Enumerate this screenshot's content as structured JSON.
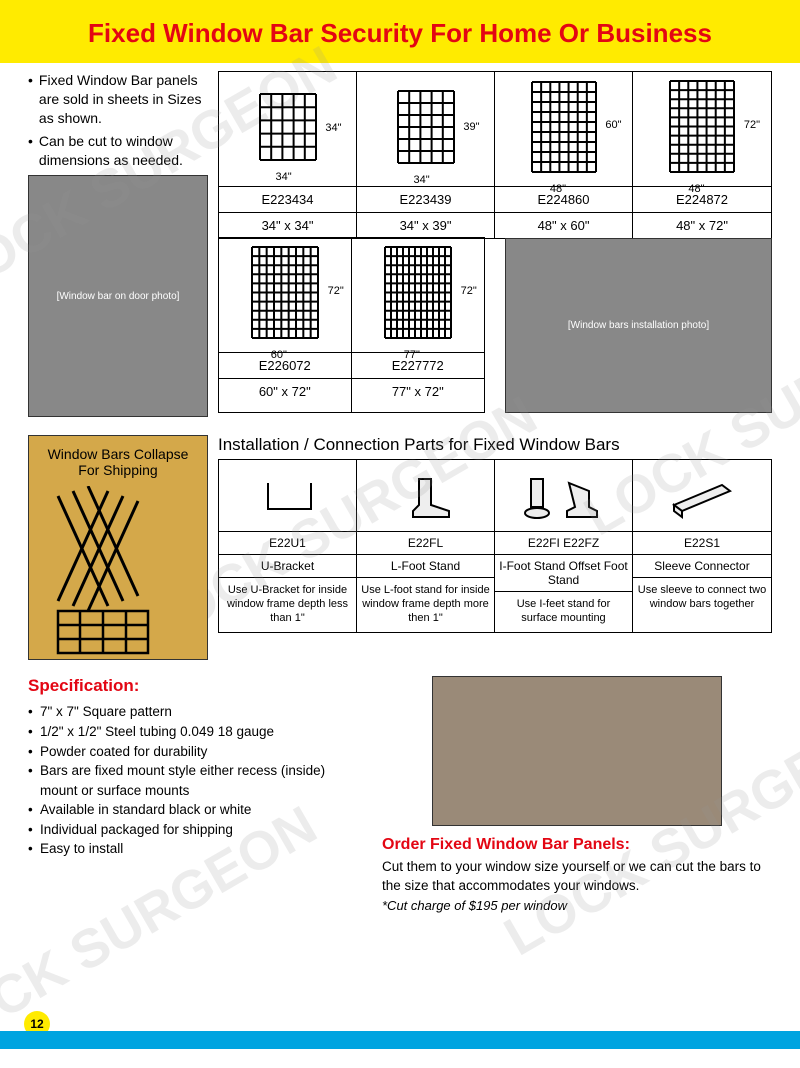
{
  "header": {
    "title": "Fixed Window Bar Security For Home Or Business"
  },
  "intro": {
    "bullets": [
      "Fixed Window Bar panels are sold in sheets in Sizes as shown.",
      "Can be cut to window dimensions as needed."
    ]
  },
  "sizes_row1": [
    {
      "code": "E223434",
      "dim": "34\" x 34\"",
      "w": "34\"",
      "h": "34\"",
      "cols": 5,
      "rows": 5
    },
    {
      "code": "E223439",
      "dim": "34\" x 39\"",
      "w": "34\"",
      "h": "39\"",
      "cols": 5,
      "rows": 6
    },
    {
      "code": "E224860",
      "dim": "48\" x 60\"",
      "w": "48\"",
      "h": "60\"",
      "cols": 7,
      "rows": 9
    },
    {
      "code": "E224872",
      "dim": "48\" x 72\"",
      "w": "48\"",
      "h": "72\"",
      "cols": 7,
      "rows": 10
    }
  ],
  "sizes_row2": [
    {
      "code": "E226072",
      "dim": "60\" x 72\"",
      "w": "60\"",
      "h": "72\"",
      "cols": 9,
      "rows": 10
    },
    {
      "code": "E227772",
      "dim": "77\" x 72\"",
      "w": "77\"",
      "h": "72\"",
      "cols": 11,
      "rows": 10
    }
  ],
  "collapse": {
    "label": "Window Bars Collapse For Shipping"
  },
  "parts": {
    "title": "Installation / Connection Parts for Fixed Window Bars",
    "items": [
      {
        "code": "E22U1",
        "name": "U-Bracket",
        "desc": "Use U-Bracket for inside window frame depth less than 1\""
      },
      {
        "code": "E22FL",
        "name": "L-Foot Stand",
        "desc": "Use L-foot stand for inside window frame depth more then 1\""
      },
      {
        "code": "E22FI    E22FZ",
        "name": "I-Foot Stand Offset Foot Stand",
        "desc": "Use I-feet stand for surface mounting"
      },
      {
        "code": "E22S1",
        "name": "Sleeve Connector",
        "desc": "Use sleeve to connect two window bars together"
      }
    ]
  },
  "spec": {
    "title": "Specification:",
    "items": [
      "7\" x 7\" Square pattern",
      "1/2\" x 1/2\" Steel tubing 0.049  18 gauge",
      "Powder coated for durability",
      "Bars are fixed mount style either recess (inside) mount or surface mounts",
      "Available in standard black or white",
      "Individual packaged for shipping",
      "Easy to install"
    ]
  },
  "order": {
    "title": "Order Fixed Window Bar Panels:",
    "text": "Cut them to your window size yourself or we can cut the bars to the size that accommodates your windows.",
    "charge": "*Cut charge of $195 per window"
  },
  "page": "12",
  "colors": {
    "yellow": "#ffeb00",
    "red": "#e30613",
    "blue": "#00a4e0",
    "black": "#000000"
  },
  "watermark": "LOCK SURGEON"
}
